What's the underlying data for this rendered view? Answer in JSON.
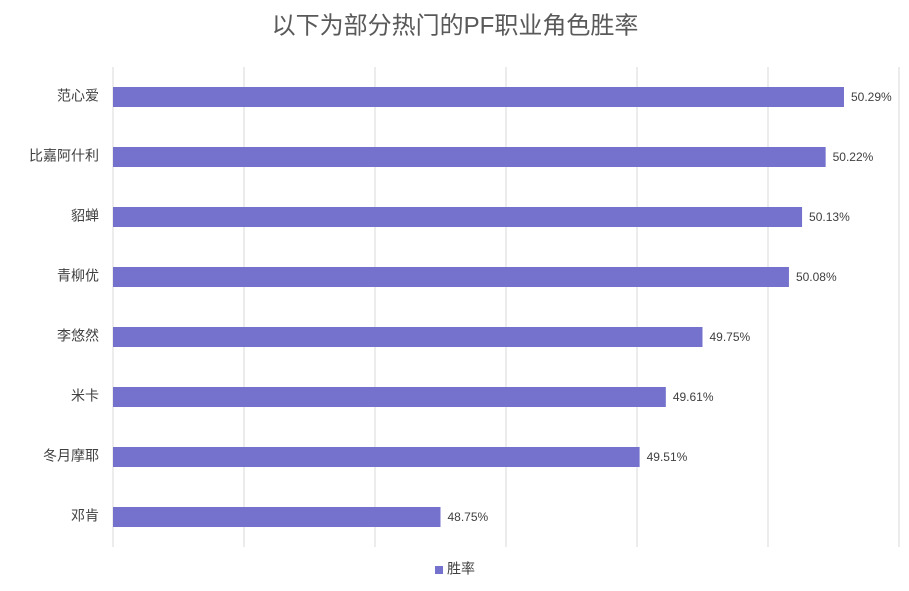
{
  "chart_data": {
    "type": "barh",
    "title": "以下为部分热门的PF职业角色胜率",
    "categories": [
      "范心爱",
      "比嘉阿什利",
      "貂蝉",
      "青柳优",
      "李悠然",
      "米卡",
      "冬月摩耶",
      "邓肯"
    ],
    "series": [
      {
        "name": "胜率",
        "color": "#7472cc",
        "values": [
          50.29,
          50.22,
          50.13,
          50.08,
          49.75,
          49.61,
          49.51,
          48.75
        ],
        "value_labels": [
          "50.29%",
          "50.22%",
          "50.13%",
          "50.08%",
          "49.75%",
          "49.61%",
          "49.51%",
          "48.75%"
        ]
      }
    ],
    "xlim": [
      47.5,
      50.5
    ],
    "xticks": [
      47.5,
      48,
      48.5,
      49,
      49.5,
      50,
      50.5
    ],
    "grid": true,
    "legend": "bottom"
  }
}
